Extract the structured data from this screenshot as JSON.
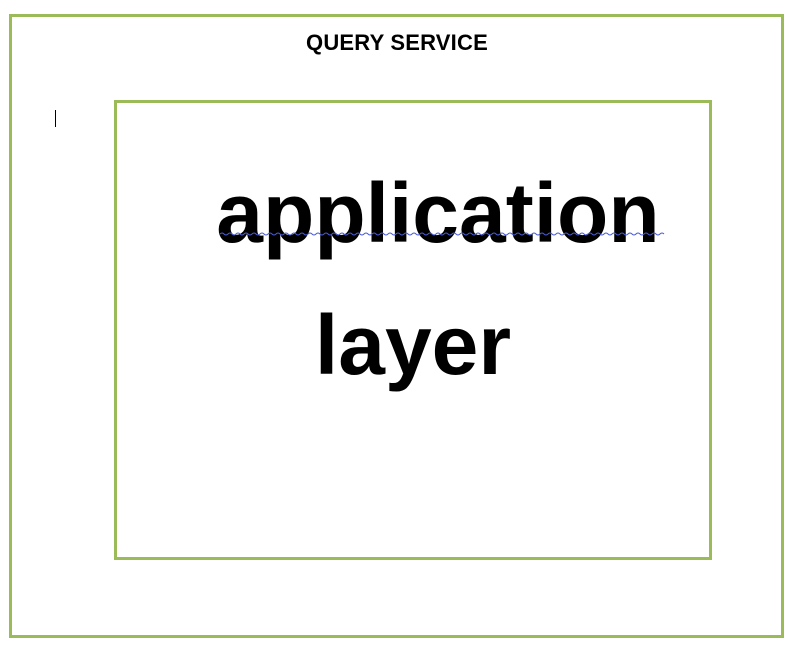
{
  "diagram": {
    "outer": {
      "title": "QUERY SERVICE"
    },
    "inner": {
      "label_line_1": "application",
      "label_line_2": "layer"
    },
    "colors": {
      "box_border": "#9bbb59",
      "text": "#000000",
      "spellcheck_underline": "#4a5bd4"
    }
  }
}
